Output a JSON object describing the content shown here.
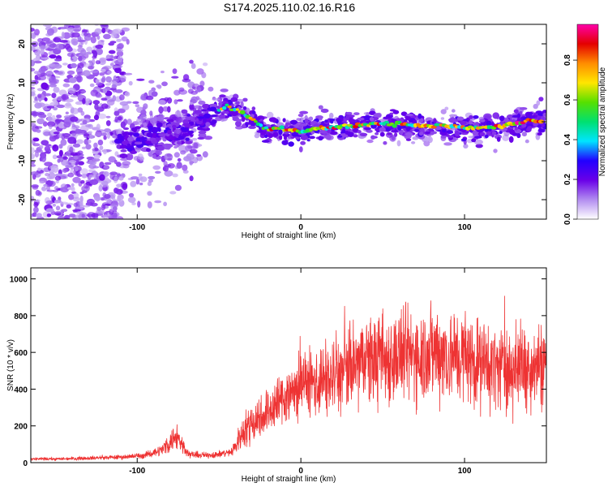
{
  "title": "S174.2025.110.02.16.R16",
  "chart_data": [
    {
      "type": "heatmap",
      "xlabel": "Height of straight line (km)",
      "ylabel": "Frequency (Hz)",
      "xlim": [
        -165,
        150
      ],
      "ylim": [
        -25,
        25
      ],
      "xticks": [
        -100,
        0,
        100
      ],
      "yticks": [
        -20,
        -10,
        0,
        10,
        20
      ],
      "grid": false,
      "ridge": {
        "x": [
          -110,
          -100,
          -90,
          -80,
          -70,
          -60,
          -50,
          -45,
          -40,
          -35,
          -30,
          -25,
          -20,
          -10,
          0,
          10,
          20,
          30,
          40,
          50,
          60,
          70,
          80,
          90,
          100,
          110,
          120,
          130,
          140,
          148
        ],
        "y": [
          -5,
          -5,
          -4,
          -3,
          -2,
          0,
          3,
          4,
          3,
          2,
          1,
          -1,
          -2,
          -2,
          -2.5,
          -1.5,
          -1.5,
          -1,
          -0.5,
          -0.5,
          -0.5,
          -1,
          -1,
          -1,
          -1.5,
          -1.5,
          -1.5,
          -0.5,
          0.2,
          0.3
        ]
      },
      "colorbar": {
        "label": "Normalized spectral amplitude",
        "ticks": [
          0.0,
          0.2,
          0.4,
          0.6,
          0.8
        ],
        "colors": [
          "#ffffff",
          "#b28cf0",
          "#6a00e8",
          "#2200ff",
          "#00e5ff",
          "#00e070",
          "#56e000",
          "#ffe600",
          "#ff8c00",
          "#e40000",
          "#ff00aa"
        ]
      }
    },
    {
      "type": "line",
      "xlabel": "Height of straight line (km)",
      "ylabel": "SNR (10 * v/v)",
      "xlim": [
        -165,
        150
      ],
      "ylim": [
        0,
        1060
      ],
      "xticks": [
        -100,
        0,
        100
      ],
      "yticks": [
        0,
        200,
        400,
        600,
        800,
        1000
      ],
      "grid": false,
      "color": "#ee3333",
      "series": [
        {
          "x": [
            -165,
            -150,
            -130,
            -110,
            -95,
            -85,
            -80,
            -76,
            -72,
            -68,
            -60,
            -50,
            -42,
            -36,
            -30,
            -20,
            -10,
            0,
            10,
            20,
            30,
            40,
            50,
            60,
            70,
            80,
            85,
            90,
            100,
            110,
            120,
            130,
            140,
            150
          ],
          "y": [
            20,
            20,
            25,
            30,
            40,
            70,
            110,
            150,
            90,
            45,
            40,
            45,
            60,
            160,
            220,
            280,
            360,
            420,
            440,
            460,
            510,
            560,
            560,
            580,
            590,
            600,
            610,
            580,
            580,
            540,
            520,
            510,
            530,
            540
          ]
        }
      ]
    }
  ]
}
